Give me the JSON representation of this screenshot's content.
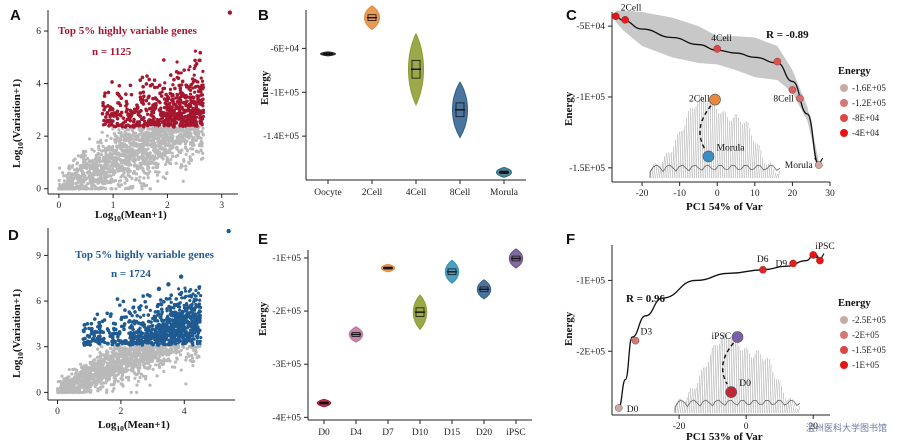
{
  "watermark": "温州医科大学图书馆",
  "colors": {
    "red": "#a5172f",
    "blue": "#1f5a91",
    "grey": "#b9b9b9"
  },
  "panels": {
    "A": {
      "label": "A",
      "annotation": "Top 5% highly variable genes",
      "count": "n = 1125",
      "ylabel_pre": "Log",
      "ylabel_sub": "10",
      "ylabel_post": "(Variation+1)",
      "xlabel_pre": "Log",
      "xlabel_sub": "10",
      "xlabel_post": "(Mean+1)"
    },
    "B": {
      "label": "B",
      "ylabel": "Energy"
    },
    "C": {
      "label": "C",
      "ylabel": "Energy",
      "xlabel": "PC1 54% of Var",
      "r": "R = -0.89",
      "legend_title": "Energy",
      "legend": [
        "-1.6E+05",
        "-1.2E+05",
        "-8E+04",
        "-4E+04"
      ],
      "landscape_top": "2Cell",
      "landscape_bottom": "Morula"
    },
    "D": {
      "label": "D",
      "annotation": "Top 5% highly variable genes",
      "count": "n = 1724",
      "ylabel_pre": "Log",
      "ylabel_sub": "10",
      "ylabel_post": "(Variation+1)",
      "xlabel_pre": "Log",
      "xlabel_sub": "10",
      "xlabel_post": "(Mean+1)"
    },
    "E": {
      "label": "E",
      "ylabel": "Energy"
    },
    "F": {
      "label": "F",
      "ylabel": "Energy",
      "xlabel": "PC1 53% of Var",
      "r": "R = 0.96",
      "legend_title": "Energy",
      "legend": [
        "-2.5E+05",
        "-2E+05",
        "-1.5E+05",
        "-1E+05"
      ],
      "landscape_top": "iPSC",
      "landscape_bottom": "D0"
    }
  },
  "chart_data": [
    {
      "panel": "A",
      "type": "scatter",
      "xlim": [
        -0.2,
        3.3
      ],
      "ylim": [
        -0.2,
        6.8
      ],
      "xticks": [
        0,
        1,
        2,
        3
      ],
      "yticks": [
        0,
        2,
        4,
        6
      ],
      "threshold": 2.35,
      "n_highlight": 1125,
      "max_point": [
        3.15,
        6.7
      ]
    },
    {
      "panel": "B",
      "type": "violin",
      "categories": [
        "Oocyte",
        "2Cell",
        "4Cell",
        "8Cell",
        "Morula"
      ],
      "medians": [
        -65000,
        -32000,
        -79000,
        -116000,
        -173000
      ],
      "spread": [
        1000,
        6000,
        18000,
        14000,
        2500
      ],
      "colors": [
        "#222222",
        "#e4883c",
        "#8b9a2b",
        "#2d5d8c",
        "#2d6e80"
      ],
      "ylim": [
        -180000,
        -25000
      ],
      "yticks": [
        -60000,
        -100000,
        -140000
      ],
      "ytick_labels": [
        "-6E+04",
        "-1E+05",
        "-1.4E+05"
      ]
    },
    {
      "panel": "C",
      "type": "line",
      "xlim": [
        -28,
        30
      ],
      "ylim": [
        -160000,
        -40000
      ],
      "xticks": [
        -20,
        -10,
        0,
        10,
        20,
        30
      ],
      "yticks": [
        -50000,
        -100000,
        -150000
      ],
      "ytick_labels": [
        "-5E+04",
        "-1E+05",
        "-1.5E+05"
      ],
      "curve_x": [
        -27,
        -25,
        -20,
        -12,
        -5,
        0,
        5,
        10,
        16,
        20,
        24,
        27
      ],
      "curve_y": [
        -43000,
        -46000,
        -52000,
        -58000,
        -63000,
        -67000,
        -69000,
        -72000,
        -76000,
        -89000,
        -112000,
        -148000
      ],
      "band_width": [
        4000,
        7000,
        12000,
        14000,
        13000,
        10000,
        12000,
        14000,
        12000,
        8000,
        5000,
        3000
      ],
      "points": [
        {
          "x": -27,
          "y": -43000,
          "label": "2Cell",
          "energy": -40000
        },
        {
          "x": -24.5,
          "y": -45500,
          "energy": -45000
        },
        {
          "x": 0,
          "y": -66000,
          "label": "4Cell",
          "energy": -80000
        },
        {
          "x": 16,
          "y": -75000,
          "energy": -90000
        },
        {
          "x": 20,
          "y": -95000,
          "energy": -100000
        },
        {
          "x": 22,
          "y": -101000,
          "label": "8Cell",
          "energy": -110000
        },
        {
          "x": 27,
          "y": -148000,
          "label": "Morula",
          "energy": -160000
        }
      ]
    },
    {
      "panel": "D",
      "type": "scatter",
      "xlim": [
        -0.3,
        5.6
      ],
      "ylim": [
        -0.5,
        10.8
      ],
      "xticks": [
        0,
        2,
        4
      ],
      "yticks": [
        0,
        3,
        6,
        9
      ],
      "threshold": 3.1,
      "n_highlight": 1724,
      "outliers": [
        [
          5.4,
          10.6
        ],
        [
          3.9,
          7.6
        ],
        [
          3.5,
          7.1
        ],
        [
          3.2,
          6.8
        ]
      ]
    },
    {
      "panel": "E",
      "type": "violin",
      "categories": [
        "D0",
        "D4",
        "D7",
        "D10",
        "D15",
        "D20",
        "iPSC"
      ],
      "medians": [
        -373000,
        -244000,
        -119000,
        -202000,
        -126000,
        -159000,
        -101000
      ],
      "spread": [
        4000,
        8000,
        4000,
        18000,
        12000,
        10000,
        10000
      ],
      "colors": [
        "#a5172f",
        "#b8739e",
        "#e4883c",
        "#8b9a2b",
        "#2f8fb4",
        "#2d5d8c",
        "#6c4f8e"
      ],
      "ylim": [
        -405000,
        -85000
      ],
      "yticks": [
        -100000,
        -200000,
        -300000,
        -400000
      ],
      "ytick_labels": [
        "-1E+05",
        "-2E+05",
        "-3E+05",
        "-4E+05"
      ]
    },
    {
      "panel": "F",
      "type": "line",
      "xlim": [
        -40,
        25
      ],
      "ylim": [
        -290000,
        -50000
      ],
      "xticks": [
        -20,
        0,
        20
      ],
      "yticks": [
        -100000,
        -200000
      ],
      "ytick_labels": [
        "-1E+05",
        "-2E+05"
      ],
      "curve_x": [
        -38,
        -36,
        -34,
        -30,
        -25,
        -15,
        -5,
        5,
        12,
        18,
        20,
        22
      ],
      "curve_y": [
        -280000,
        -240000,
        -180000,
        -150000,
        -125000,
        -100000,
        -90000,
        -85000,
        -80000,
        -72000,
        -65000,
        -70000
      ],
      "points": [
        {
          "x": -38,
          "y": -280000,
          "label": "D0",
          "energy": -250000
        },
        {
          "x": -33,
          "y": -185000,
          "label": "D3",
          "energy": -200000
        },
        {
          "x": 5,
          "y": -85000,
          "label": "D6",
          "energy": -120000
        },
        {
          "x": 14,
          "y": -76000,
          "label": "D9",
          "energy": -110000
        },
        {
          "x": 20,
          "y": -64000,
          "label": "iPSC",
          "energy": -100000
        },
        {
          "x": 22,
          "y": -72000,
          "energy": -100000
        }
      ]
    }
  ]
}
